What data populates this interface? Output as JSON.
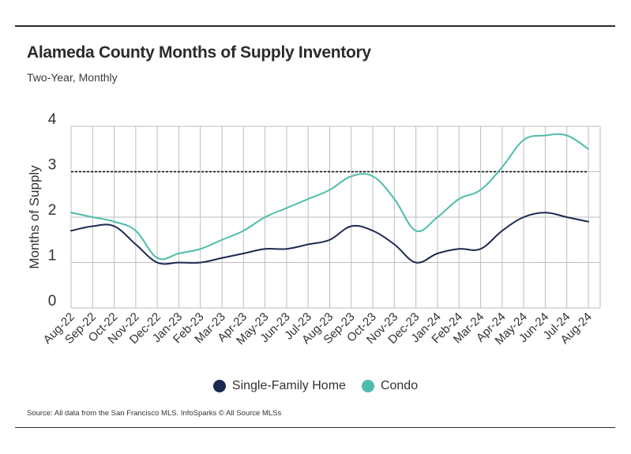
{
  "title": "Alameda County Months of Supply Inventory",
  "subtitle": "Two-Year, Monthly",
  "source": "Source:  All data from the San Francisco MLS. InfoSparks © All Source MLSs",
  "chart_data": {
    "type": "line",
    "title": "Alameda County Months of Supply Inventory",
    "subtitle": "Two-Year, Monthly",
    "xlabel": "",
    "ylabel": "Months of Supply",
    "ylim": [
      0,
      4
    ],
    "yticks": [
      0,
      1,
      2,
      3,
      4
    ],
    "grid": true,
    "legend_position": "bottom",
    "categories": [
      "Aug-22",
      "Sep-22",
      "Oct-22",
      "Nov-22",
      "Dec-22",
      "Jan-23",
      "Feb-23",
      "Mar-23",
      "Apr-23",
      "May-23",
      "Jun-23",
      "Jul-23",
      "Aug-23",
      "Sep-23",
      "Oct-23",
      "Nov-23",
      "Dec-23",
      "Jan-24",
      "Feb-24",
      "Mar-24",
      "Apr-24",
      "May-24",
      "Jun-24",
      "Jul-24",
      "Aug-24"
    ],
    "series": [
      {
        "name": "Single-Family Home",
        "color": "#1c2951",
        "values": [
          1.7,
          1.8,
          1.8,
          1.4,
          1.0,
          1.0,
          1.0,
          1.1,
          1.2,
          1.3,
          1.3,
          1.4,
          1.5,
          1.8,
          1.7,
          1.4,
          1.0,
          1.2,
          1.3,
          1.3,
          1.7,
          2.0,
          2.1,
          2.0,
          1.9
        ]
      },
      {
        "name": "Condo",
        "color": "#4dbdaa",
        "values": [
          2.1,
          2.0,
          1.9,
          1.7,
          1.1,
          1.2,
          1.3,
          1.5,
          1.7,
          2.0,
          2.2,
          2.4,
          2.6,
          2.9,
          2.9,
          2.4,
          1.7,
          2.0,
          2.4,
          2.6,
          3.1,
          3.7,
          3.8,
          3.8,
          3.5
        ]
      }
    ],
    "reference_line": {
      "value": 3,
      "style": "dashed",
      "color": "#000000"
    }
  }
}
